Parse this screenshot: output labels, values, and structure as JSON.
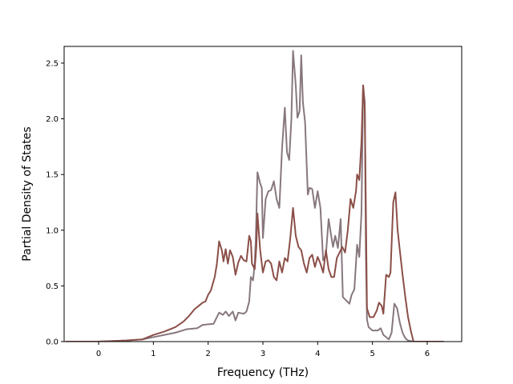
{
  "chart_data": {
    "type": "line",
    "title": "",
    "xlabel": "Frequency (THz)",
    "ylabel": "Partial Density of States",
    "xlim": [
      -0.63,
      6.63
    ],
    "ylim": [
      0.0,
      2.65
    ],
    "xticks": [
      0,
      1,
      2,
      3,
      4,
      5,
      6
    ],
    "xtick_labels": [
      "0",
      "1",
      "2",
      "3",
      "4",
      "5",
      "6"
    ],
    "yticks": [
      0.0,
      0.5,
      1.0,
      1.5,
      2.0,
      2.5
    ],
    "ytick_labels": [
      "0.0",
      "0.5",
      "1.0",
      "1.5",
      "2.0",
      "2.5"
    ],
    "grid": false,
    "legend": "none",
    "series": [
      {
        "color": "#87787e",
        "points": [
          [
            -0.6,
            0.0
          ],
          [
            0.0,
            0.0
          ],
          [
            0.5,
            0.01
          ],
          [
            0.8,
            0.02
          ],
          [
            1.0,
            0.04
          ],
          [
            1.2,
            0.06
          ],
          [
            1.4,
            0.08
          ],
          [
            1.6,
            0.11
          ],
          [
            1.8,
            0.12
          ],
          [
            1.9,
            0.15
          ],
          [
            2.1,
            0.16
          ],
          [
            2.2,
            0.26
          ],
          [
            2.27,
            0.24
          ],
          [
            2.32,
            0.27
          ],
          [
            2.38,
            0.23
          ],
          [
            2.45,
            0.27
          ],
          [
            2.5,
            0.19
          ],
          [
            2.55,
            0.26
          ],
          [
            2.65,
            0.25
          ],
          [
            2.7,
            0.27
          ],
          [
            2.75,
            0.36
          ],
          [
            2.78,
            0.58
          ],
          [
            2.82,
            0.55
          ],
          [
            2.85,
            0.7
          ],
          [
            2.87,
            0.92
          ],
          [
            2.9,
            1.52
          ],
          [
            2.95,
            1.42
          ],
          [
            2.98,
            1.38
          ],
          [
            3.0,
            0.93
          ],
          [
            3.05,
            1.28
          ],
          [
            3.1,
            1.35
          ],
          [
            3.15,
            1.36
          ],
          [
            3.2,
            1.44
          ],
          [
            3.25,
            1.28
          ],
          [
            3.3,
            1.2
          ],
          [
            3.35,
            1.74
          ],
          [
            3.4,
            2.1
          ],
          [
            3.44,
            1.7
          ],
          [
            3.48,
            1.63
          ],
          [
            3.52,
            2.0
          ],
          [
            3.55,
            2.61
          ],
          [
            3.6,
            2.3
          ],
          [
            3.63,
            2.01
          ],
          [
            3.67,
            2.07
          ],
          [
            3.7,
            2.57
          ],
          [
            3.73,
            2.15
          ],
          [
            3.77,
            1.97
          ],
          [
            3.82,
            1.32
          ],
          [
            3.85,
            1.38
          ],
          [
            3.9,
            1.37
          ],
          [
            3.95,
            1.2
          ],
          [
            4.0,
            1.35
          ],
          [
            4.05,
            1.2
          ],
          [
            4.1,
            0.73
          ],
          [
            4.15,
            0.78
          ],
          [
            4.2,
            1.1
          ],
          [
            4.24,
            0.97
          ],
          [
            4.28,
            0.85
          ],
          [
            4.32,
            0.95
          ],
          [
            4.37,
            0.84
          ],
          [
            4.42,
            1.1
          ],
          [
            4.46,
            0.4
          ],
          [
            4.52,
            0.37
          ],
          [
            4.58,
            0.34
          ],
          [
            4.62,
            0.42
          ],
          [
            4.67,
            0.47
          ],
          [
            4.72,
            0.87
          ],
          [
            4.76,
            0.76
          ],
          [
            4.8,
            1.16
          ],
          [
            4.83,
            2.3
          ],
          [
            4.86,
            2.15
          ],
          [
            4.88,
            0.8
          ],
          [
            4.9,
            0.2
          ],
          [
            4.93,
            0.13
          ],
          [
            5.0,
            0.1
          ],
          [
            5.1,
            0.1
          ],
          [
            5.15,
            0.12
          ],
          [
            5.2,
            0.06
          ],
          [
            5.3,
            0.02
          ],
          [
            5.35,
            0.08
          ],
          [
            5.4,
            0.34
          ],
          [
            5.45,
            0.3
          ],
          [
            5.5,
            0.17
          ],
          [
            5.55,
            0.08
          ],
          [
            5.6,
            0.03
          ],
          [
            5.65,
            0.01
          ],
          [
            5.75,
            0.0
          ],
          [
            6.3,
            0.0
          ]
        ]
      },
      {
        "color": "#8b4f48",
        "points": [
          [
            -0.6,
            0.0
          ],
          [
            0.0,
            0.0
          ],
          [
            0.5,
            0.01
          ],
          [
            0.8,
            0.02
          ],
          [
            1.0,
            0.06
          ],
          [
            1.2,
            0.09
          ],
          [
            1.4,
            0.13
          ],
          [
            1.55,
            0.18
          ],
          [
            1.65,
            0.23
          ],
          [
            1.75,
            0.29
          ],
          [
            1.85,
            0.33
          ],
          [
            1.9,
            0.35
          ],
          [
            1.95,
            0.36
          ],
          [
            2.0,
            0.42
          ],
          [
            2.05,
            0.46
          ],
          [
            2.12,
            0.58
          ],
          [
            2.16,
            0.7
          ],
          [
            2.2,
            0.9
          ],
          [
            2.25,
            0.82
          ],
          [
            2.28,
            0.72
          ],
          [
            2.32,
            0.83
          ],
          [
            2.36,
            0.7
          ],
          [
            2.4,
            0.82
          ],
          [
            2.45,
            0.76
          ],
          [
            2.5,
            0.6
          ],
          [
            2.55,
            0.71
          ],
          [
            2.6,
            0.77
          ],
          [
            2.65,
            0.73
          ],
          [
            2.7,
            0.72
          ],
          [
            2.75,
            0.95
          ],
          [
            2.78,
            0.9
          ],
          [
            2.8,
            0.7
          ],
          [
            2.85,
            0.65
          ],
          [
            2.88,
            0.85
          ],
          [
            2.9,
            1.15
          ],
          [
            2.95,
            0.82
          ],
          [
            3.0,
            0.62
          ],
          [
            3.05,
            0.72
          ],
          [
            3.1,
            0.73
          ],
          [
            3.15,
            0.7
          ],
          [
            3.2,
            0.58
          ],
          [
            3.25,
            0.55
          ],
          [
            3.3,
            0.72
          ],
          [
            3.35,
            0.62
          ],
          [
            3.4,
            0.75
          ],
          [
            3.45,
            0.72
          ],
          [
            3.5,
            0.93
          ],
          [
            3.55,
            1.2
          ],
          [
            3.6,
            0.95
          ],
          [
            3.65,
            0.85
          ],
          [
            3.7,
            0.82
          ],
          [
            3.75,
            0.7
          ],
          [
            3.8,
            0.62
          ],
          [
            3.85,
            0.75
          ],
          [
            3.9,
            0.78
          ],
          [
            3.95,
            0.67
          ],
          [
            4.0,
            0.76
          ],
          [
            4.05,
            0.7
          ],
          [
            4.1,
            0.62
          ],
          [
            4.15,
            0.82
          ],
          [
            4.2,
            0.65
          ],
          [
            4.25,
            0.58
          ],
          [
            4.3,
            0.58
          ],
          [
            4.35,
            0.75
          ],
          [
            4.4,
            0.8
          ],
          [
            4.45,
            0.85
          ],
          [
            4.5,
            0.8
          ],
          [
            4.55,
            1.0
          ],
          [
            4.6,
            1.28
          ],
          [
            4.65,
            1.2
          ],
          [
            4.7,
            1.35
          ],
          [
            4.72,
            1.5
          ],
          [
            4.76,
            1.45
          ],
          [
            4.8,
            1.8
          ],
          [
            4.83,
            2.3
          ],
          [
            4.86,
            2.1
          ],
          [
            4.88,
            1.2
          ],
          [
            4.9,
            0.3
          ],
          [
            4.95,
            0.22
          ],
          [
            5.02,
            0.22
          ],
          [
            5.08,
            0.28
          ],
          [
            5.12,
            0.35
          ],
          [
            5.17,
            0.32
          ],
          [
            5.2,
            0.25
          ],
          [
            5.25,
            0.6
          ],
          [
            5.3,
            0.58
          ],
          [
            5.33,
            0.62
          ],
          [
            5.38,
            1.25
          ],
          [
            5.42,
            1.34
          ],
          [
            5.46,
            1.0
          ],
          [
            5.5,
            0.82
          ],
          [
            5.55,
            0.6
          ],
          [
            5.6,
            0.4
          ],
          [
            5.65,
            0.22
          ],
          [
            5.7,
            0.1
          ],
          [
            5.75,
            0.0
          ],
          [
            6.3,
            0.0
          ]
        ]
      }
    ]
  }
}
